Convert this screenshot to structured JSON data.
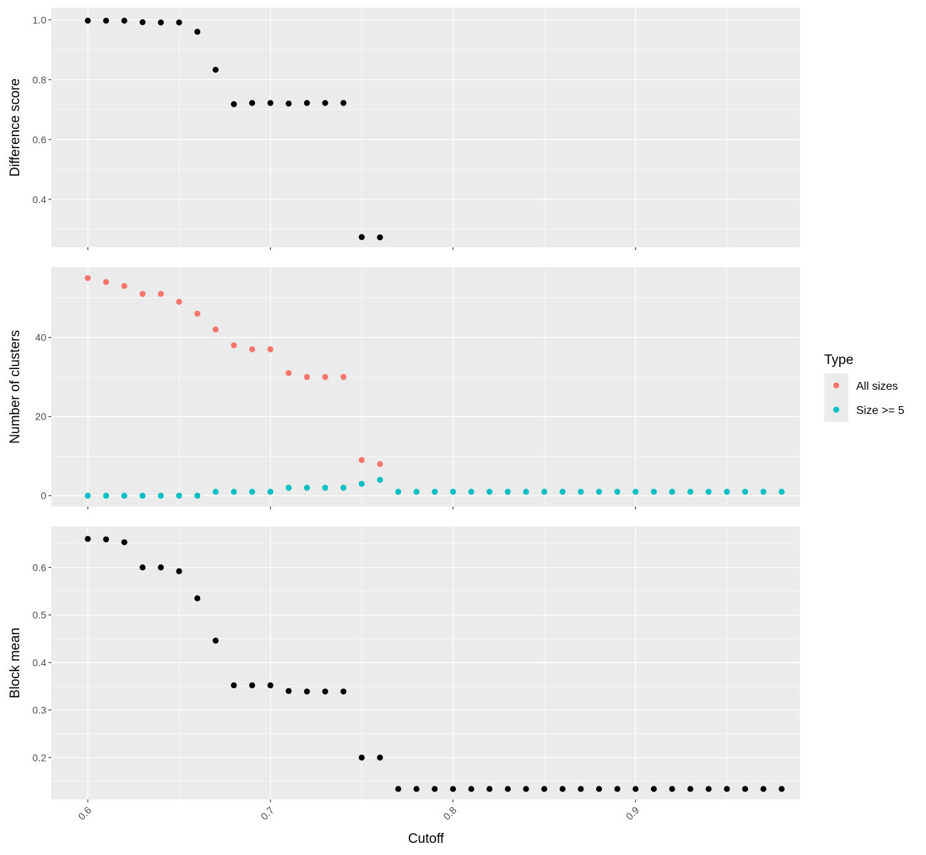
{
  "figure": {
    "xlabel": "Cutoff",
    "xlim": [
      0.58,
      0.99
    ],
    "xticks": [
      0.6,
      0.7,
      0.8,
      0.9
    ],
    "xtick_labels": [
      "0.6",
      "0.7",
      "0.8",
      "0.9"
    ],
    "legend": {
      "title": "Type",
      "items": [
        {
          "label": "All sizes",
          "color": "#F8766D"
        },
        {
          "label": "Size >= 5",
          "color": "#00BFC4"
        }
      ]
    }
  },
  "chart_data": [
    {
      "type": "scatter",
      "ylabel": "Difference score",
      "ylim": [
        0.24,
        1.04
      ],
      "yticks": [
        0.4,
        0.6,
        0.8,
        1.0
      ],
      "ytick_labels": [
        "0.4",
        "0.6",
        "0.8",
        "1.0"
      ],
      "series": [
        {
          "color": "#000000",
          "x": [
            0.6,
            0.61,
            0.62,
            0.63,
            0.64,
            0.65,
            0.66,
            0.67,
            0.68,
            0.69,
            0.7,
            0.71,
            0.72,
            0.73,
            0.74,
            0.75,
            0.76
          ],
          "y": [
            0.997,
            0.997,
            0.997,
            0.992,
            0.991,
            0.991,
            0.96,
            0.833,
            0.718,
            0.722,
            0.722,
            0.72,
            0.722,
            0.722,
            0.722,
            0.274,
            0.273
          ]
        }
      ]
    },
    {
      "type": "scatter",
      "ylabel": "Number of clusters",
      "ylim": [
        -2.75,
        57.75
      ],
      "yticks": [
        0,
        20,
        40
      ],
      "ytick_labels": [
        "0",
        "20",
        "40"
      ],
      "series": [
        {
          "name": "All sizes",
          "color": "#F8766D",
          "x": [
            0.6,
            0.61,
            0.62,
            0.63,
            0.64,
            0.65,
            0.66,
            0.67,
            0.68,
            0.69,
            0.7,
            0.71,
            0.72,
            0.73,
            0.74,
            0.75,
            0.76
          ],
          "y": [
            55,
            54,
            53,
            51,
            51,
            49,
            46,
            42,
            38,
            37,
            37,
            31,
            30,
            30,
            30,
            9,
            8
          ]
        },
        {
          "name": "Size >= 5",
          "color": "#00BFC4",
          "x": [
            0.6,
            0.61,
            0.62,
            0.63,
            0.64,
            0.65,
            0.66,
            0.67,
            0.68,
            0.69,
            0.7,
            0.71,
            0.72,
            0.73,
            0.74,
            0.75,
            0.76,
            0.77,
            0.78,
            0.79,
            0.8,
            0.81,
            0.82,
            0.83,
            0.84,
            0.85,
            0.86,
            0.87,
            0.88,
            0.89,
            0.9,
            0.91,
            0.92,
            0.93,
            0.94,
            0.95,
            0.96,
            0.97,
            0.98
          ],
          "y": [
            0,
            0,
            0,
            0,
            0,
            0,
            0,
            1,
            1,
            1,
            1,
            2,
            2,
            2,
            2,
            3,
            4,
            1,
            1,
            1,
            1,
            1,
            1,
            1,
            1,
            1,
            1,
            1,
            1,
            1,
            1,
            1,
            1,
            1,
            1,
            1,
            1,
            1,
            1
          ]
        }
      ]
    },
    {
      "type": "scatter",
      "ylabel": "Block mean",
      "ylim": [
        0.112,
        0.686
      ],
      "yticks": [
        0.2,
        0.3,
        0.4,
        0.5,
        0.6
      ],
      "ytick_labels": [
        "0.2",
        "0.3",
        "0.4",
        "0.5",
        "0.6"
      ],
      "series": [
        {
          "color": "#000000",
          "x": [
            0.6,
            0.61,
            0.62,
            0.63,
            0.64,
            0.65,
            0.66,
            0.67,
            0.68,
            0.69,
            0.7,
            0.71,
            0.72,
            0.73,
            0.74,
            0.75,
            0.76,
            0.77,
            0.78,
            0.79,
            0.8,
            0.81,
            0.82,
            0.83,
            0.84,
            0.85,
            0.86,
            0.87,
            0.88,
            0.89,
            0.9,
            0.91,
            0.92,
            0.93,
            0.94,
            0.95,
            0.96,
            0.97,
            0.98
          ],
          "y": [
            0.66,
            0.659,
            0.653,
            0.6,
            0.6,
            0.592,
            0.535,
            0.446,
            0.352,
            0.352,
            0.352,
            0.34,
            0.339,
            0.339,
            0.339,
            0.2,
            0.2,
            0.134,
            0.134,
            0.134,
            0.134,
            0.134,
            0.134,
            0.134,
            0.134,
            0.134,
            0.134,
            0.134,
            0.134,
            0.134,
            0.134,
            0.134,
            0.134,
            0.134,
            0.134,
            0.134,
            0.134,
            0.134,
            0.134
          ]
        }
      ]
    }
  ]
}
